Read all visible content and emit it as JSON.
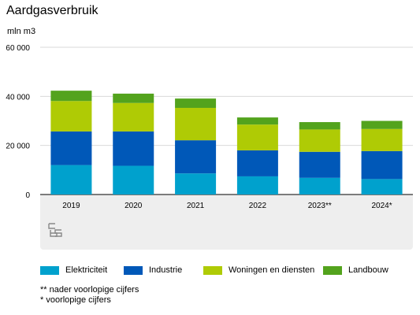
{
  "title": "Aardgasverbruik",
  "unit_label": "mln m3",
  "chart_data": {
    "type": "bar",
    "stacked": true,
    "categories": [
      "2019",
      "2020",
      "2021",
      "2022",
      "2023**",
      "2024*"
    ],
    "ylim": [
      0,
      60000
    ],
    "yticks": [
      {
        "value": 0,
        "label": "0"
      },
      {
        "value": 20000,
        "label": "20 000"
      },
      {
        "value": 40000,
        "label": "40 000"
      },
      {
        "value": 60000,
        "label": "60 000"
      }
    ],
    "grid": true,
    "legend_position": "bottom",
    "series": [
      {
        "name": "Elektriciteit",
        "color": "#00a1cd",
        "values": [
          12000,
          11700,
          8600,
          7400,
          6800,
          6300
        ]
      },
      {
        "name": "Industrie",
        "color": "#0058b8",
        "values": [
          13700,
          14000,
          13500,
          10600,
          10600,
          11400
        ]
      },
      {
        "name": "Woningen en diensten",
        "color": "#afcb05",
        "values": [
          12400,
          11600,
          13200,
          10500,
          9100,
          9000
        ]
      },
      {
        "name": "Landbouw",
        "color": "#53a31d",
        "values": [
          4200,
          3800,
          3800,
          2900,
          3000,
          3300
        ]
      }
    ]
  },
  "notes": [
    "** nader voorlopige cijfers",
    "* voorlopige cijfers"
  ],
  "logo": "cbs"
}
